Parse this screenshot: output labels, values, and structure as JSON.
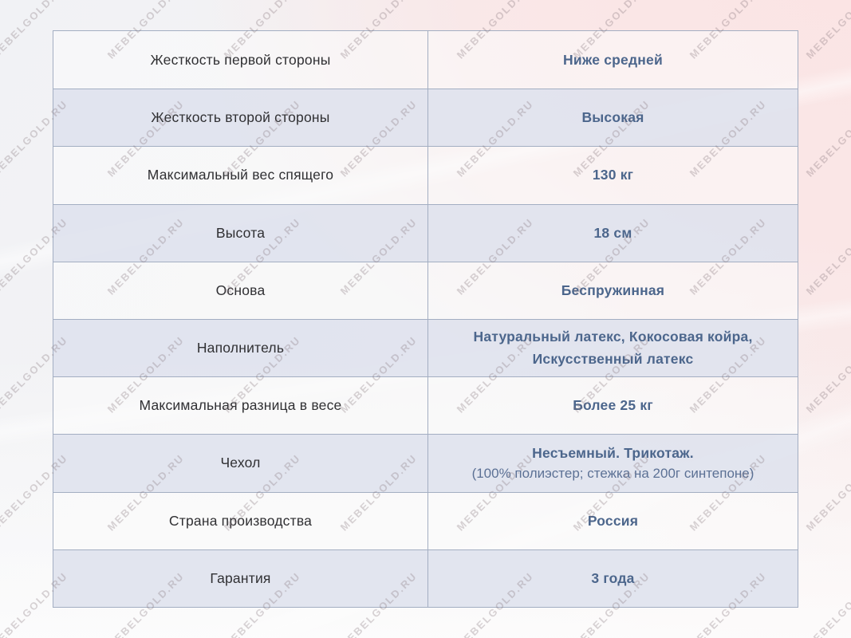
{
  "watermark": {
    "text": "MEBELGOLD.RU"
  },
  "table": {
    "rows": [
      {
        "label": "Жесткость первой стороны",
        "value": "Ниже средней"
      },
      {
        "label": "Жесткость второй стороны",
        "value": "Высокая"
      },
      {
        "label": "Максимальный вес спящего",
        "value": "130 кг"
      },
      {
        "label": "Высота",
        "value": "18 см"
      },
      {
        "label": "Основа",
        "value": "Беспружинная"
      },
      {
        "label": "Наполнитель",
        "value": "Натуральный латекс, Кокосовая койра, Искусственный латекс"
      },
      {
        "label": "Максимальная разница в весе",
        "value": "Более 25 кг"
      },
      {
        "label": "Чехол",
        "value": "Несъемный. Трикотаж.",
        "note": "(100% полиэстер; стежка на 200г синтепоне)"
      },
      {
        "label": "Страна производства",
        "value": "Россия"
      },
      {
        "label": "Гарантия",
        "value": "3 года"
      }
    ]
  },
  "colors": {
    "value_text": "#4c668c",
    "label_text": "#303033",
    "row_alt": "#dfe3ee",
    "border": "#a3aec2",
    "bg_pink": "#fbe4e4",
    "bg_gray": "#f1f2f5",
    "watermark": "#807076"
  }
}
